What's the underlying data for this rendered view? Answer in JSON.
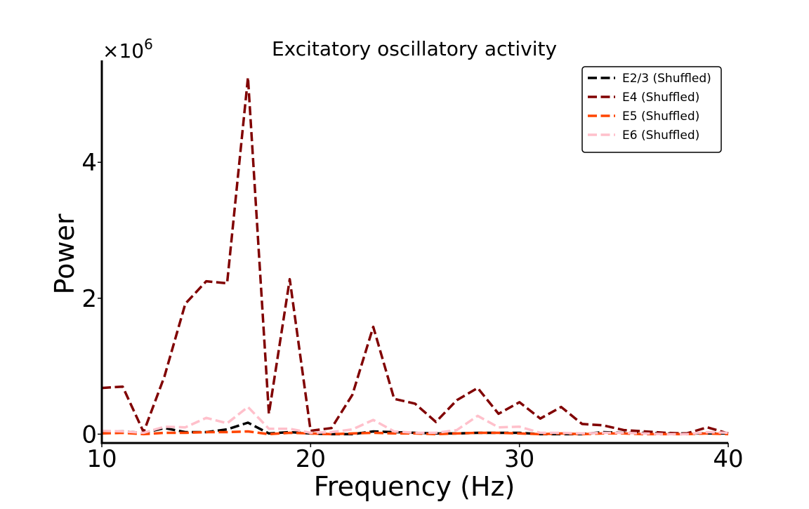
{
  "chart_data": {
    "type": "line",
    "title": "Excitatory oscillatory activity",
    "xlabel": "Frequency (Hz)",
    "ylabel": "Power",
    "y_offset_label": "×10",
    "y_offset_exponent": "6",
    "xlim": [
      10,
      40
    ],
    "ylim": [
      -0.13,
      5.5
    ],
    "y_multiplier": 1000000,
    "x_ticks": [
      {
        "value": 10,
        "label": "10"
      },
      {
        "value": 20,
        "label": "20"
      },
      {
        "value": 30,
        "label": "30"
      },
      {
        "value": 40,
        "label": "40"
      }
    ],
    "y_ticks": [
      {
        "value": 0,
        "label": "0"
      },
      {
        "value": 2,
        "label": "2"
      },
      {
        "value": 4,
        "label": "4"
      }
    ],
    "grid": false,
    "legend_position": "top-right",
    "x": [
      10,
      11,
      12,
      13,
      14,
      15,
      16,
      17,
      18,
      19,
      20,
      21,
      22,
      23,
      24,
      25,
      26,
      27,
      28,
      29,
      30,
      31,
      32,
      33,
      34,
      35,
      36,
      37,
      38,
      39,
      40
    ],
    "series": [
      {
        "name": "E2/3 (Shuffled)",
        "color": "#000000",
        "values": [
          0.04,
          0.04,
          0.02,
          0.09,
          0.03,
          0.03,
          0.07,
          0.17,
          0.01,
          0.03,
          0.01,
          0.0,
          0.0,
          0.04,
          0.03,
          0.02,
          0.01,
          0.01,
          0.02,
          0.02,
          0.02,
          0.0,
          0.0,
          0.0,
          0.03,
          0.02,
          0.02,
          0.01,
          0.01,
          0.01,
          0.01
        ]
      },
      {
        "name": "E4 (Shuffled)",
        "color": "#800000",
        "values": [
          0.68,
          0.7,
          0.03,
          0.85,
          1.92,
          2.25,
          2.22,
          5.25,
          0.3,
          2.28,
          0.05,
          0.09,
          0.58,
          1.58,
          0.52,
          0.45,
          0.18,
          0.5,
          0.68,
          0.3,
          0.47,
          0.23,
          0.4,
          0.15,
          0.13,
          0.06,
          0.04,
          0.02,
          0.01,
          0.1,
          0.01
        ]
      },
      {
        "name": "E5 (Shuffled)",
        "color": "#ff4500",
        "values": [
          0.01,
          0.02,
          0.0,
          0.02,
          0.02,
          0.03,
          0.03,
          0.04,
          0.0,
          0.02,
          0.01,
          0.0,
          0.01,
          0.02,
          0.01,
          0.01,
          0.0,
          0.01,
          0.02,
          0.02,
          0.01,
          0.0,
          0.01,
          0.0,
          0.01,
          0.01,
          0.0,
          0.0,
          0.0,
          0.01,
          0.0
        ]
      },
      {
        "name": "E6 (Shuffled)",
        "color": "#ffc0cb",
        "values": [
          0.05,
          0.04,
          0.02,
          0.11,
          0.1,
          0.24,
          0.16,
          0.4,
          0.08,
          0.08,
          0.02,
          0.03,
          0.07,
          0.21,
          0.04,
          0.02,
          0.02,
          0.06,
          0.27,
          0.1,
          0.11,
          0.02,
          0.02,
          0.01,
          0.02,
          0.02,
          0.01,
          0.0,
          0.0,
          0.03,
          0.02
        ]
      }
    ]
  }
}
